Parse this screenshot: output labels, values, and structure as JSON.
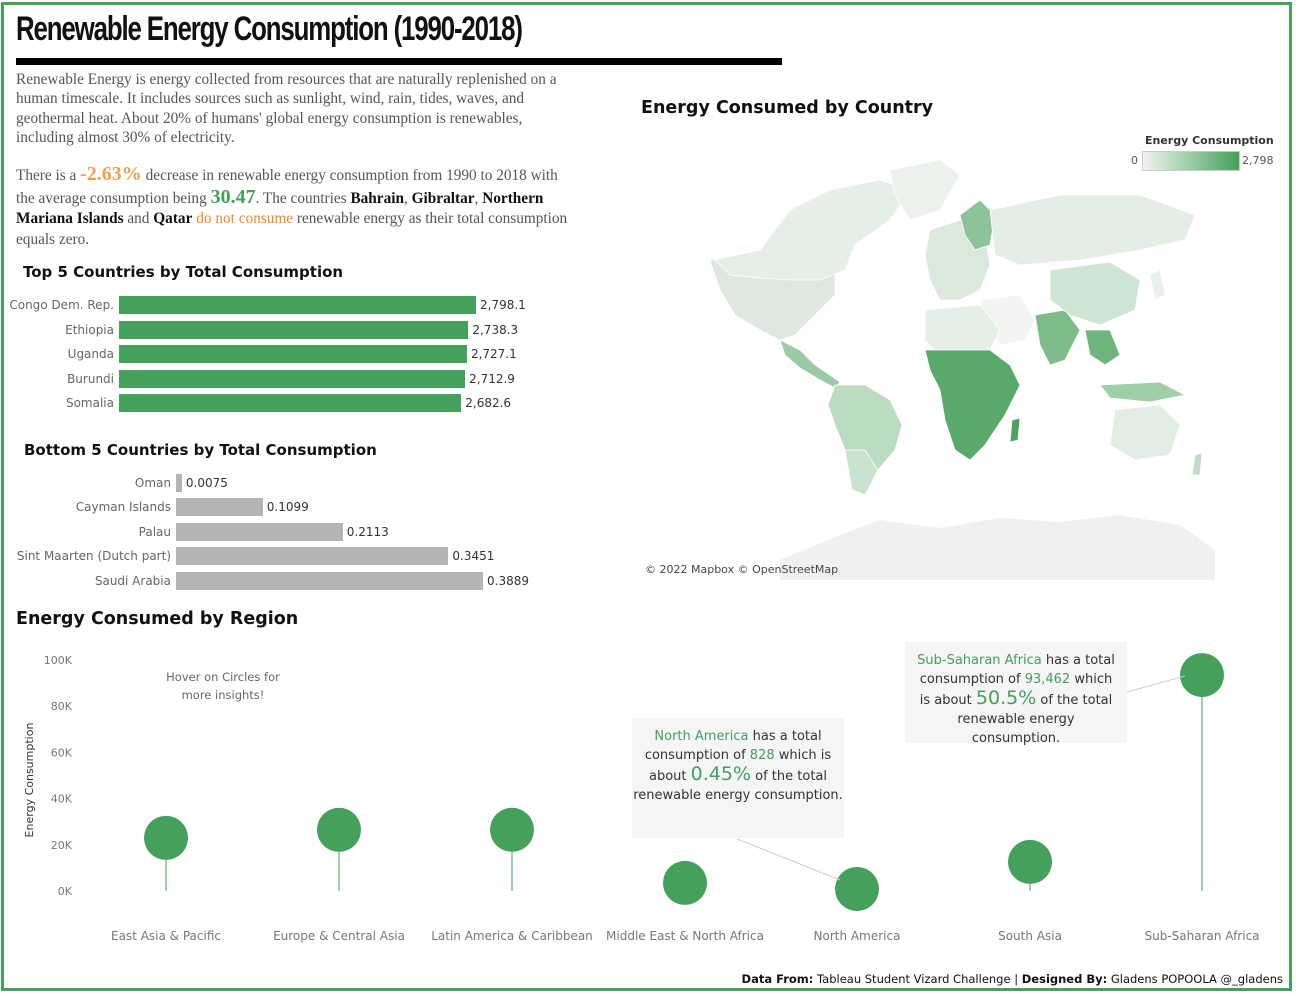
{
  "title": "Renewable Energy Consumption (1990-2018)",
  "intro_text": "Renewable Energy is energy collected from resources that are naturally replenished on a human timescale. It includes sources such as sunlight, wind, rain, tides, waves, and geothermal heat. About 20% of humans' global energy consumption is renewables, including almost 30% of electricity.",
  "summary": {
    "p1": "There is a ",
    "change": "-2.63%",
    "p2": " decrease in renewable energy consumption from 1990 to 2018 with the average consumption being ",
    "average": "30.47",
    "p3": ". The countries ",
    "c1": "Bahrain",
    "p4": ", ",
    "c2": "Gibraltar",
    "p5": ", ",
    "c3": "Northern Mariana Islands",
    "p6": " and ",
    "c4": "Qatar",
    "p7": " ",
    "highlight": "do not consume",
    "p8": " renewable energy as their total consumption equals zero."
  },
  "colors": {
    "accent_green": "#44a05a",
    "bar_gray": "#b4b4b4",
    "orange": "#ee8a2a",
    "frame": "#44a05a"
  },
  "map": {
    "title": "Energy Consumed by Country",
    "legend_title": "Energy Consumption",
    "legend_min": "0",
    "legend_max": "2,798",
    "attribution": "© 2022 Mapbox © OpenStreetMap"
  },
  "hover_note": "Hover on Circles for more insights!",
  "tooltips": {
    "na": {
      "region": "North America",
      "t1": " has a total consumption of ",
      "value": "828",
      "t2": " which is about ",
      "pct": "0.45%",
      "t3": " of the total renewable energy consumption."
    },
    "ssa": {
      "region": "Sub-Saharan Africa",
      "t1": " has a total consumption of ",
      "value": "93,462",
      "t2": " which is about ",
      "pct": "50.5%",
      "t3": " of the total renewable energy consumption."
    }
  },
  "footer": {
    "label1": "Data From:",
    "source": " Tableau Student Vizard Challenge | ",
    "label2": "Designed By:",
    "author": " Gladens POPOOLA @_gladens"
  },
  "chart_data": [
    {
      "type": "bar",
      "title": "Top 5 Countries by Total Consumption",
      "categories": [
        "Congo Dem. Rep.",
        "Ethiopia",
        "Uganda",
        "Burundi",
        "Somalia"
      ],
      "values": [
        2798.1,
        2738.3,
        2727.1,
        2712.9,
        2682.6
      ],
      "value_labels": [
        "2,798.1",
        "2,738.3",
        "2,727.1",
        "2,712.9",
        "2,682.6"
      ],
      "orientation": "horizontal",
      "color": "#44a05a",
      "grid": false
    },
    {
      "type": "bar",
      "title": "Bottom 5 Countries by Total Consumption",
      "categories": [
        "Oman",
        "Cayman Islands",
        "Palau",
        "Sint Maarten (Dutch part)",
        "Saudi Arabia"
      ],
      "values": [
        0.0075,
        0.1099,
        0.2113,
        0.3451,
        0.3889
      ],
      "value_labels": [
        "0.0075",
        "0.1099",
        "0.2113",
        "0.3451",
        "0.3889"
      ],
      "orientation": "horizontal",
      "color": "#b4b4b4",
      "grid": false
    },
    {
      "type": "scatter",
      "title": "Energy Consumed by Region",
      "categories": [
        "East Asia & Pacific",
        "Europe & Central Asia",
        "Latin America & Caribbean",
        "Middle East & North Africa",
        "North America",
        "South Asia",
        "Sub-Saharan Africa"
      ],
      "values": [
        23000,
        26500,
        26500,
        3500,
        828,
        12600,
        93462
      ],
      "ylabel": "Energy Consumption",
      "ylim": [
        0,
        100000
      ],
      "yticks": [
        0,
        20000,
        40000,
        60000,
        80000,
        100000
      ],
      "ytick_labels": [
        "0K",
        "20K",
        "40K",
        "60K",
        "80K",
        "100K"
      ],
      "color": "#44a05a",
      "grid": false
    }
  ]
}
